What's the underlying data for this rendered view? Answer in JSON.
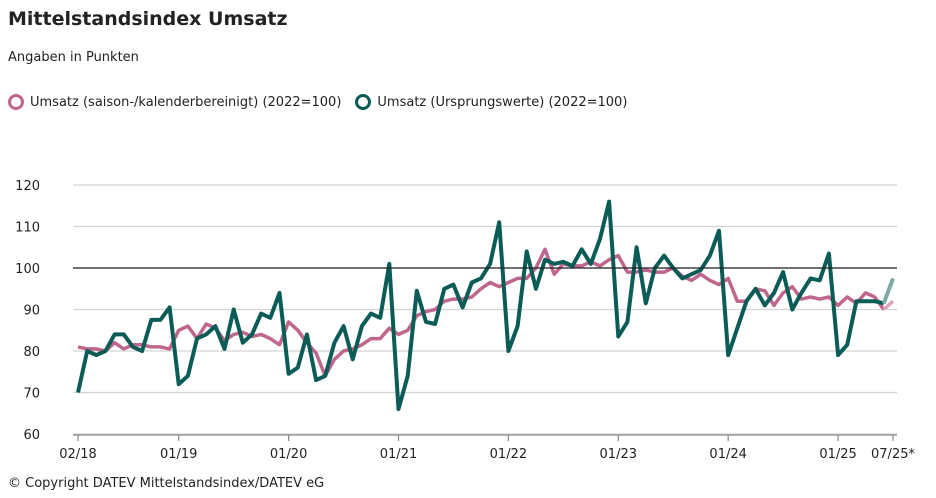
{
  "title": "Mittelstandsindex Umsatz",
  "subtitle": "Angaben in Punkten",
  "copyright": "© Copyright DATEV Mittelstandsindex/DATEV eG",
  "chart_data": {
    "type": "line",
    "title": "Mittelstandsindex Umsatz",
    "ylim": [
      60,
      120
    ],
    "yticks": [
      60,
      70,
      80,
      90,
      100,
      110,
      120
    ],
    "reference_line": 100,
    "grid": true,
    "legend_placement": "top-left",
    "x_start": "02/18",
    "x_end": "07/25",
    "xtick_labels": [
      "02/18",
      "01/19",
      "01/20",
      "01/21",
      "01/22",
      "01/23",
      "01/24",
      "01/25",
      "07/25*"
    ],
    "xtick_months": [
      "2018-02",
      "2019-01",
      "2020-01",
      "2021-01",
      "2022-01",
      "2023-01",
      "2024-01",
      "2025-01",
      "2025-07"
    ],
    "preliminary_last_point": true,
    "series": [
      {
        "name": "Umsatz (saison-/kalenderbereinigt) (2022=100)",
        "color": "#c0668d",
        "light_color": "#dba4bc",
        "values": [
          81,
          80.5,
          80.5,
          80,
          82,
          80.5,
          81.5,
          81.5,
          81,
          81,
          80.5,
          85,
          86,
          83,
          86.5,
          85.5,
          82.5,
          84,
          84.5,
          83.5,
          84,
          83,
          81.5,
          87,
          85,
          82,
          79.5,
          74,
          78,
          80,
          80.5,
          81.5,
          83,
          83,
          85.5,
          84,
          85,
          88.5,
          89.5,
          90,
          92,
          92.5,
          92.5,
          93,
          95,
          96.5,
          95.5,
          96.5,
          97.5,
          97.5,
          100,
          104.5,
          98.5,
          101,
          100.5,
          100.5,
          101.5,
          100.5,
          102,
          103,
          99,
          99,
          99.5,
          99,
          99,
          100,
          98,
          97,
          98.5,
          97,
          96,
          97.5,
          92,
          92,
          95,
          94.5,
          91,
          94,
          95.5,
          92.5,
          93,
          92.5,
          93,
          91,
          93,
          91.5,
          94,
          93,
          90,
          92
        ]
      },
      {
        "name": "Umsatz (Ursprungswerte) (2022=100)",
        "color": "#0b5c57",
        "light_color": "#7ea9a5",
        "values": [
          70,
          80,
          79,
          80,
          84,
          84,
          81,
          80,
          87.5,
          87.5,
          90.5,
          72,
          74,
          83,
          84,
          86,
          80.5,
          90,
          82,
          84,
          89,
          88,
          94,
          74.5,
          76,
          84,
          73,
          74,
          82,
          86,
          78,
          86,
          89,
          88,
          101,
          66,
          74,
          94.5,
          87,
          86.5,
          95,
          96,
          90.5,
          96.5,
          97.5,
          101,
          111,
          80,
          86,
          104,
          95,
          102,
          101,
          101.5,
          100.5,
          104.5,
          101,
          107,
          116,
          83.5,
          87,
          105,
          91.5,
          100,
          103,
          100,
          97.5,
          98.5,
          99.5,
          103,
          109,
          79,
          85.5,
          92,
          95,
          91,
          94,
          99,
          90,
          94,
          97.5,
          97,
          103.5,
          79,
          81.5,
          92,
          92,
          92,
          91.5,
          97.5
        ]
      }
    ]
  }
}
